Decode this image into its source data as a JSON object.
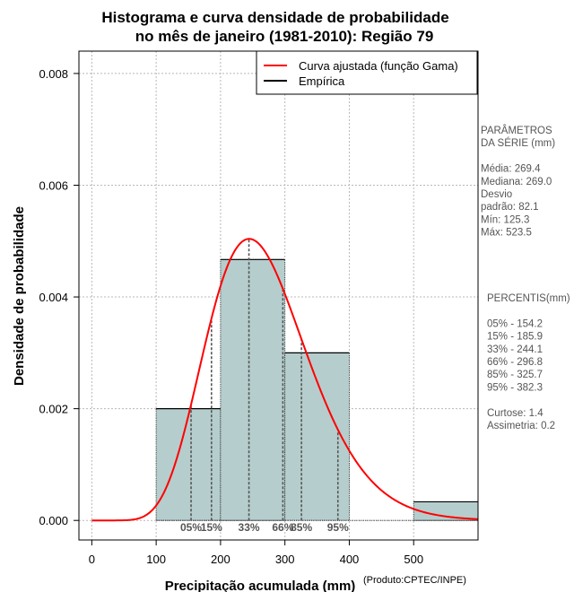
{
  "chart_data": {
    "type": "bar",
    "title": [
      "Histograma e curva densidade de probabilidade",
      "no mês de janeiro (1981-2010): Região 79"
    ],
    "xlabel": "Precipitação acumulada (mm)",
    "ylabel": "Densidade de probabilidade",
    "credit": "(Produto:CPTEC/INPE)",
    "xlim": [
      -20,
      600
    ],
    "ylim": [
      -0.00035,
      0.0084
    ],
    "x_ticks": [
      0,
      100,
      200,
      300,
      400,
      500
    ],
    "y_ticks": [
      0.0,
      0.002,
      0.004,
      0.006,
      0.008
    ],
    "y_tick_labels": [
      "0.000",
      "0.002",
      "0.004",
      "0.006",
      "0.008"
    ],
    "grid": true,
    "bar_color": "#b5cdcd",
    "curve_color": "#ff0000",
    "histogram": [
      {
        "start": 100,
        "end": 200,
        "density": 0.002
      },
      {
        "start": 200,
        "end": 300,
        "density": 0.00467
      },
      {
        "start": 300,
        "end": 400,
        "density": 0.003
      },
      {
        "start": 400,
        "end": 500,
        "density": 0.0
      },
      {
        "start": 500,
        "end": 600,
        "density": 0.000333
      }
    ],
    "gamma_fit": {
      "shape": 10.7,
      "scale": 25.2
    },
    "percentile_markers": [
      {
        "label": "05%",
        "value": 154.2
      },
      {
        "label": "15%",
        "value": 185.9
      },
      {
        "label": "33%",
        "value": 244.1
      },
      {
        "label": "66%",
        "value": 296.8
      },
      {
        "label": "85%",
        "value": 325.7
      },
      {
        "label": "95%",
        "value": 382.3
      }
    ],
    "legend": [
      {
        "label": "Curva ajustada (função Gama)",
        "color": "#ff0000"
      },
      {
        "label": "Empírica",
        "color": "#000000"
      }
    ],
    "legend_position": "top-right"
  },
  "side_panel": {
    "params_lines": [
      "PARÂMETROS",
      " DA SÉRIE (mm)",
      "",
      "Média:  269.4",
      "Mediana:  269.0",
      "Desvio",
      "padrão:  82.1",
      "Mín:  125.3",
      "Máx:  523.5"
    ],
    "percentis_lines": [
      "PERCENTIS(mm)",
      "",
      "05% -  154.2",
      "15% -  185.9",
      "33% -  244.1",
      "66% -  296.8",
      "85% -  325.7",
      "95% -  382.3",
      "",
      "Curtose:  1.4",
      "Assimetria:  0.2"
    ]
  }
}
